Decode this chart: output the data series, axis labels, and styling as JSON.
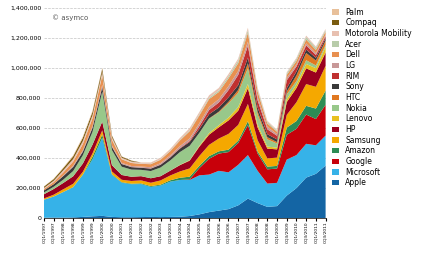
{
  "watermark": "© asymco",
  "ylim": [
    0,
    1400000
  ],
  "yticks": [
    0,
    200000,
    400000,
    600000,
    800000,
    1000000,
    1200000,
    1400000
  ],
  "legend_fontsize": 5.5,
  "companies": [
    "Apple",
    "Microsoft",
    "Google",
    "Amazon",
    "Samsung",
    "HP",
    "Lenovo",
    "Nokia",
    "HTC",
    "Sony",
    "RIM",
    "LG",
    "Dell",
    "Acer",
    "Motorola Mobility",
    "Compaq",
    "Palm"
  ],
  "colors": [
    "#1465a4",
    "#36b2e8",
    "#c8000a",
    "#2d8c55",
    "#f5a800",
    "#9b001e",
    "#e8c020",
    "#98c88a",
    "#e07820",
    "#3a3a3a",
    "#c03030",
    "#c89898",
    "#e89050",
    "#b8ccaa",
    "#e8c0b0",
    "#7a5c10",
    "#e8c09a"
  ],
  "quarters": [
    "CQ1/1997",
    "CQ3/1997",
    "CQ1/1998",
    "CQ3/1998",
    "CQ1/1999",
    "CQ3/1999",
    "CQ1/2000",
    "CQ3/2000",
    "CQ1/2001",
    "CQ3/2001",
    "CQ1/2002",
    "CQ3/2002",
    "CQ1/2003",
    "CQ3/2003",
    "CQ1/2004",
    "CQ3/2004",
    "CQ1/2005",
    "CQ3/2005",
    "CQ1/2006",
    "CQ3/2006",
    "CQ1/2007",
    "CQ3/2007",
    "CQ1/2008",
    "CQ3/2008",
    "CQ1/2009",
    "CQ3/2009",
    "CQ1/2010",
    "CQ3/2010",
    "CQ1/2011",
    "CQ3/2011"
  ],
  "data": {
    "Apple": [
      3000,
      4000,
      4000,
      5000,
      8000,
      12000,
      15000,
      8000,
      6000,
      6000,
      7000,
      8000,
      7000,
      8000,
      9000,
      14000,
      25000,
      40000,
      50000,
      60000,
      85000,
      130000,
      100000,
      75000,
      80000,
      150000,
      200000,
      270000,
      295000,
      350000
    ],
    "Microsoft": [
      120000,
      140000,
      170000,
      200000,
      280000,
      380000,
      520000,
      280000,
      230000,
      220000,
      220000,
      200000,
      210000,
      235000,
      245000,
      240000,
      260000,
      250000,
      265000,
      245000,
      270000,
      290000,
      215000,
      155000,
      155000,
      240000,
      220000,
      225000,
      190000,
      200000
    ],
    "Google": [
      0,
      0,
      0,
      0,
      0,
      0,
      0,
      0,
      0,
      0,
      0,
      0,
      0,
      0,
      0,
      4000,
      48000,
      105000,
      115000,
      135000,
      145000,
      200000,
      115000,
      95000,
      95000,
      165000,
      175000,
      195000,
      175000,
      205000
    ],
    "Amazon": [
      0,
      0,
      1000,
      1500,
      2500,
      18000,
      22000,
      4500,
      3500,
      3500,
      4500,
      5500,
      6000,
      9000,
      15000,
      18000,
      16000,
      18000,
      15000,
      16000,
      16000,
      26000,
      14000,
      18000,
      18000,
      48000,
      52000,
      58000,
      70000,
      95000
    ],
    "Samsung": [
      8000,
      12000,
      18000,
      22000,
      18000,
      22000,
      28000,
      18000,
      16000,
      18000,
      20000,
      22000,
      28000,
      32000,
      42000,
      55000,
      65000,
      75000,
      85000,
      105000,
      105000,
      115000,
      75000,
      55000,
      55000,
      85000,
      125000,
      145000,
      145000,
      165000
    ],
    "HP": [
      28000,
      38000,
      42000,
      50000,
      55000,
      58000,
      58000,
      42000,
      32000,
      28000,
      28000,
      30000,
      28000,
      32000,
      42000,
      52000,
      62000,
      68000,
      75000,
      90000,
      95000,
      105000,
      85000,
      65000,
      55000,
      85000,
      95000,
      105000,
      95000,
      88000
    ],
    "Lenovo": [
      0,
      0,
      0,
      0,
      0,
      0,
      0,
      0,
      0,
      0,
      0,
      0,
      0,
      0,
      2000,
      3000,
      6000,
      11000,
      14000,
      19000,
      24000,
      28000,
      18000,
      14000,
      11000,
      19000,
      24000,
      29000,
      29000,
      38000
    ],
    "Nokia": [
      12000,
      15000,
      22000,
      35000,
      55000,
      85000,
      200000,
      100000,
      55000,
      48000,
      42000,
      48000,
      58000,
      68000,
      85000,
      95000,
      85000,
      95000,
      85000,
      95000,
      95000,
      105000,
      68000,
      48000,
      28000,
      32000,
      22000,
      25000,
      18000,
      13000
    ],
    "HTC": [
      0,
      0,
      0,
      0,
      0,
      0,
      0,
      0,
      0,
      0,
      0,
      0,
      0,
      0,
      0,
      500,
      1000,
      2000,
      5000,
      10000,
      19000,
      33000,
      19000,
      14000,
      9500,
      19000,
      38000,
      48000,
      33000,
      28000
    ],
    "Sony": [
      14000,
      17000,
      24000,
      28000,
      24000,
      28000,
      32000,
      22000,
      18000,
      16000,
      14000,
      16000,
      18000,
      20000,
      23000,
      26000,
      26000,
      28000,
      28000,
      30000,
      32000,
      38000,
      28000,
      20000,
      18000,
      23000,
      26000,
      23000,
      18000,
      16000
    ],
    "RIM": [
      0,
      0,
      0,
      0,
      0,
      0,
      0,
      0,
      500,
      800,
      900,
      1800,
      1800,
      2800,
      3500,
      6500,
      19000,
      28000,
      33000,
      48000,
      68000,
      78000,
      48000,
      33000,
      24000,
      52000,
      33000,
      28000,
      19000,
      14000
    ],
    "LG": [
      0,
      0,
      4500,
      7000,
      9000,
      11000,
      14000,
      9000,
      7000,
      7000,
      7000,
      8000,
      9000,
      11000,
      13000,
      17000,
      19000,
      21000,
      22000,
      26000,
      26000,
      28000,
      23000,
      16000,
      11000,
      16000,
      14000,
      13000,
      11000,
      10000
    ],
    "Dell": [
      9000,
      14000,
      20000,
      28000,
      42000,
      52000,
      62000,
      38000,
      24000,
      20000,
      18000,
      20000,
      23000,
      28000,
      38000,
      48000,
      52000,
      52000,
      48000,
      52000,
      52000,
      58000,
      36000,
      23000,
      16000,
      20000,
      23000,
      26000,
      23000,
      20000
    ],
    "Acer": [
      0,
      0,
      500,
      900,
      1800,
      2800,
      4500,
      2800,
      1800,
      1800,
      1800,
      2200,
      2800,
      3500,
      4500,
      6500,
      7500,
      9000,
      11000,
      14000,
      17000,
      19000,
      14000,
      9500,
      7500,
      11000,
      14000,
      17000,
      14000,
      11000
    ],
    "Motorola Mobility": [
      7000,
      9000,
      14000,
      16000,
      18000,
      18000,
      18000,
      14000,
      9000,
      8000,
      7000,
      8000,
      9000,
      10000,
      11000,
      13000,
      14000,
      15000,
      15000,
      14000,
      13000,
      14000,
      9000,
      7000,
      4500,
      6500,
      7500,
      9000,
      8000,
      7500
    ],
    "Compaq": [
      9000,
      11000,
      14000,
      18000,
      22000,
      22000,
      22000,
      11000,
      7000,
      6000,
      0,
      0,
      0,
      0,
      0,
      0,
      0,
      0,
      0,
      0,
      0,
      0,
      0,
      0,
      0,
      0,
      0,
      0,
      0,
      0
    ],
    "Palm": [
      1800,
      2800,
      4500,
      6500,
      7500,
      7500,
      5500,
      2800,
      1800,
      900,
      900,
      1400,
      1400,
      1400,
      1400,
      1400,
      1400,
      1400,
      1400,
      900,
      900,
      1400,
      1800,
      1400,
      500,
      500,
      0,
      0,
      0,
      0
    ]
  }
}
